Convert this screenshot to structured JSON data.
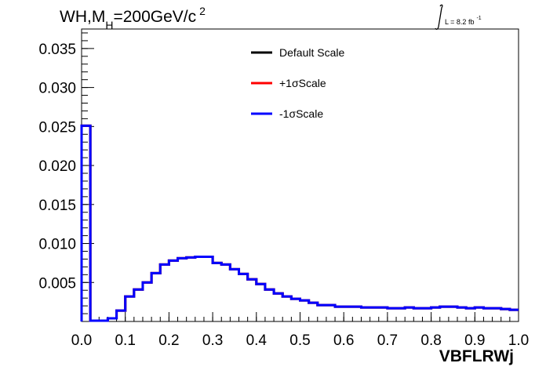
{
  "chart_data": {
    "type": "step",
    "title": "WH,M",
    "title_sub": "H",
    "title_rest": "=200GeV/c",
    "title_sup": "2",
    "lumi_label": "L = 8.2 fb",
    "lumi_sup": "-1",
    "xlabel": "VBFLRWj",
    "ylabel": "",
    "xlim": [
      0.0,
      1.0
    ],
    "ylim": [
      0.0,
      0.0375
    ],
    "x_ticks": [
      "0.0",
      "0.1",
      "0.2",
      "0.3",
      "0.4",
      "0.5",
      "0.6",
      "0.7",
      "0.8",
      "0.9",
      "1.0"
    ],
    "x_tick_values": [
      0.0,
      0.1,
      0.2,
      0.3,
      0.4,
      0.5,
      0.6,
      0.7,
      0.8,
      0.9,
      1.0
    ],
    "y_ticks": [
      "0.005",
      "0.010",
      "0.015",
      "0.020",
      "0.025",
      "0.030",
      "0.035"
    ],
    "y_tick_values": [
      0.005,
      0.01,
      0.015,
      0.02,
      0.025,
      0.03,
      0.035
    ],
    "bin_edges_start": 0.0,
    "bin_width": 0.02,
    "series": [
      {
        "name": "Default Scale",
        "color": "#000000"
      },
      {
        "name": "+1σScale",
        "color": "#ff0000"
      },
      {
        "name": "-1σScale",
        "color": "#0000ff"
      }
    ],
    "values": [
      0.0251,
      0.0001,
      0.0001,
      0.0004,
      0.0014,
      0.0032,
      0.0041,
      0.005,
      0.0062,
      0.0073,
      0.0078,
      0.0081,
      0.0082,
      0.0083,
      0.0083,
      0.0075,
      0.0073,
      0.0067,
      0.0061,
      0.0054,
      0.0048,
      0.0041,
      0.0036,
      0.0032,
      0.0029,
      0.0027,
      0.0024,
      0.0021,
      0.0021,
      0.0019,
      0.0019,
      0.0019,
      0.0018,
      0.0018,
      0.0018,
      0.0017,
      0.0017,
      0.0018,
      0.0017,
      0.0017,
      0.0018,
      0.0019,
      0.0019,
      0.0018,
      0.0017,
      0.0018,
      0.0017,
      0.0017,
      0.0016,
      0.0015
    ]
  }
}
